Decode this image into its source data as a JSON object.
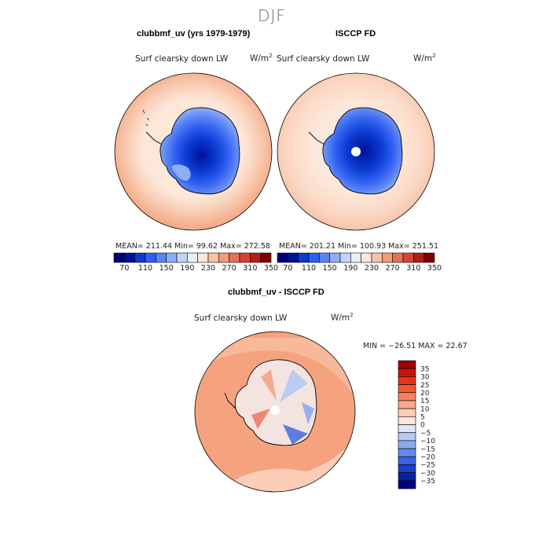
{
  "season": "DJF",
  "colors": {
    "abs_scale": [
      "#00007f",
      "#00119c",
      "#0b3bd0",
      "#2e5ff0",
      "#5a84f5",
      "#8eaef8",
      "#c2d4fb",
      "#e7eefb",
      "#fde7d9",
      "#f8c3a5",
      "#f29c7a",
      "#e8705a",
      "#d7442f",
      "#b61e16",
      "#7f0000"
    ],
    "diff_scale": [
      "#9b0000",
      "#c3160a",
      "#e23616",
      "#f05a33",
      "#f48262",
      "#f8a88b",
      "#fbcdb7",
      "#fde6da",
      "#dce6f8",
      "#b4c9f3",
      "#8cabee",
      "#6489e8",
      "#3a61e0",
      "#1c3dc9",
      "#08219f",
      "#00007f"
    ]
  },
  "top_left": {
    "title": "clubbmf_uv (yrs 1979-1979)",
    "variable": "Surf clearsky down LW",
    "units_base": "W/m",
    "units_sup": "2",
    "stats": "MEAN= 211.44   Min=  99.62   Max= 272.58"
  },
  "top_right": {
    "title": "ISCCP FD",
    "variable": "Surf clearsky down LW",
    "units_base": "W/m",
    "units_sup": "2",
    "stats": "MEAN= 201.21   Min= 100.93   Max= 251.51"
  },
  "bottom": {
    "title": "clubbmf_uv - ISCCP FD",
    "variable": "Surf clearsky down LW",
    "units_base": "W/m",
    "units_sup": "2",
    "stats": "MIN = −26.51  MAX =  22.67"
  },
  "chart_data": [
    {
      "type": "heatmap",
      "title": "clubbmf_uv (yrs 1979-1979)",
      "subtitle": "Surf clearsky down LW",
      "units": "W/m2",
      "projection": "south polar stereographic",
      "stats": {
        "mean": 211.44,
        "min": 99.62,
        "max": 272.58
      },
      "colorbar": {
        "orientation": "horizontal",
        "levels": [
          70,
          90,
          110,
          130,
          150,
          170,
          190,
          210,
          230,
          250,
          270,
          290,
          310,
          330,
          350
        ],
        "tick_labels": [
          "70",
          "110",
          "150",
          "190",
          "230",
          "270",
          "310",
          "350"
        ]
      }
    },
    {
      "type": "heatmap",
      "title": "ISCCP FD",
      "subtitle": "Surf clearsky down LW",
      "units": "W/m2",
      "projection": "south polar stereographic",
      "stats": {
        "mean": 201.21,
        "min": 100.93,
        "max": 251.51
      },
      "colorbar": {
        "orientation": "horizontal",
        "levels": [
          70,
          90,
          110,
          130,
          150,
          170,
          190,
          210,
          230,
          250,
          270,
          290,
          310,
          330,
          350
        ],
        "tick_labels": [
          "70",
          "110",
          "150",
          "190",
          "230",
          "270",
          "310",
          "350"
        ]
      }
    },
    {
      "type": "heatmap",
      "title": "clubbmf_uv - ISCCP FD",
      "subtitle": "Surf clearsky down LW",
      "units": "W/m2",
      "projection": "south polar stereographic",
      "stats": {
        "min": -26.51,
        "max": 22.67
      },
      "colorbar": {
        "orientation": "vertical",
        "tick_labels": [
          "35",
          "30",
          "25",
          "20",
          "15",
          "10",
          "5",
          "0",
          "−5",
          "−10",
          "−15",
          "−20",
          "−25",
          "−30",
          "−35"
        ]
      }
    }
  ]
}
